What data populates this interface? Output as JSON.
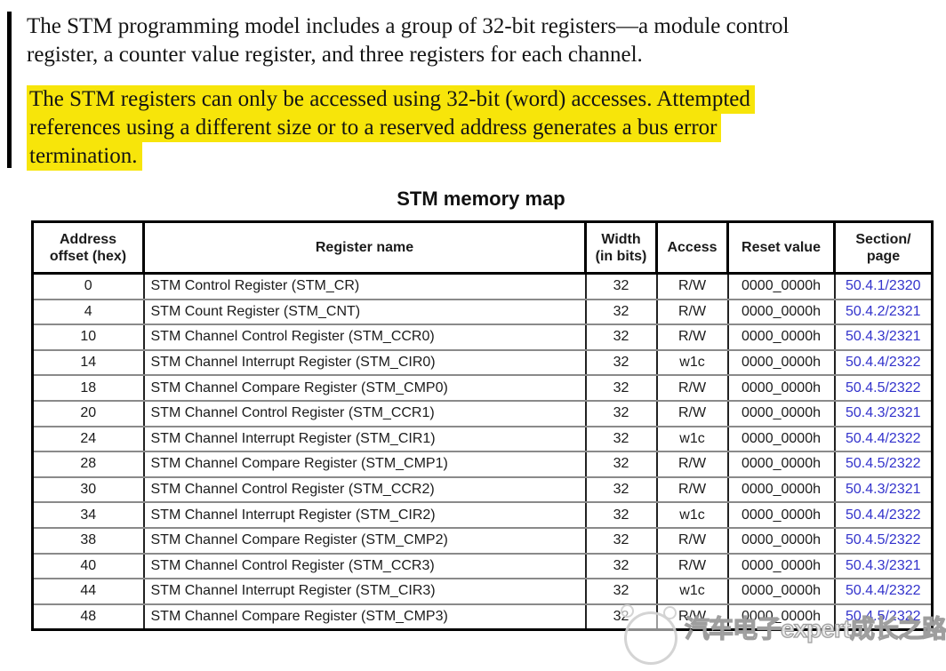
{
  "paragraph1": {
    "lines": [
      "The STM programming model includes a group of 32-bit registers—a module control",
      "register, a counter value register, and three registers for each channel."
    ]
  },
  "highlight_note": {
    "lines": [
      "The STM registers can only be accessed using 32-bit (word) accesses. Attempted",
      "references using a different size or to a reserved address generates a bus error",
      "termination."
    ]
  },
  "table_title": "STM memory map",
  "table": {
    "headers": [
      {
        "line1": "Address",
        "line2": "offset (hex)"
      },
      {
        "line1": "Register name",
        "line2": ""
      },
      {
        "line1": "Width",
        "line2": "(in bits)"
      },
      {
        "line1": "Access",
        "line2": ""
      },
      {
        "line1": "Reset value",
        "line2": ""
      },
      {
        "line1": "Section/",
        "line2": "page"
      }
    ],
    "rows": [
      {
        "offset": "0",
        "name": "STM Control Register (STM_CR)",
        "width": "32",
        "access": "R/W",
        "reset": "0000_0000h",
        "section": "50.4.1/2320"
      },
      {
        "offset": "4",
        "name": "STM Count Register (STM_CNT)",
        "width": "32",
        "access": "R/W",
        "reset": "0000_0000h",
        "section": "50.4.2/2321"
      },
      {
        "offset": "10",
        "name": "STM Channel Control Register (STM_CCR0)",
        "width": "32",
        "access": "R/W",
        "reset": "0000_0000h",
        "section": "50.4.3/2321"
      },
      {
        "offset": "14",
        "name": "STM Channel Interrupt Register (STM_CIR0)",
        "width": "32",
        "access": "w1c",
        "reset": "0000_0000h",
        "section": "50.4.4/2322"
      },
      {
        "offset": "18",
        "name": "STM Channel Compare Register (STM_CMP0)",
        "width": "32",
        "access": "R/W",
        "reset": "0000_0000h",
        "section": "50.4.5/2322"
      },
      {
        "offset": "20",
        "name": "STM Channel Control Register (STM_CCR1)",
        "width": "32",
        "access": "R/W",
        "reset": "0000_0000h",
        "section": "50.4.3/2321"
      },
      {
        "offset": "24",
        "name": "STM Channel Interrupt Register (STM_CIR1)",
        "width": "32",
        "access": "w1c",
        "reset": "0000_0000h",
        "section": "50.4.4/2322"
      },
      {
        "offset": "28",
        "name": "STM Channel Compare Register (STM_CMP1)",
        "width": "32",
        "access": "R/W",
        "reset": "0000_0000h",
        "section": "50.4.5/2322"
      },
      {
        "offset": "30",
        "name": "STM Channel Control Register (STM_CCR2)",
        "width": "32",
        "access": "R/W",
        "reset": "0000_0000h",
        "section": "50.4.3/2321"
      },
      {
        "offset": "34",
        "name": "STM Channel Interrupt Register (STM_CIR2)",
        "width": "32",
        "access": "w1c",
        "reset": "0000_0000h",
        "section": "50.4.4/2322"
      },
      {
        "offset": "38",
        "name": "STM Channel Compare Register (STM_CMP2)",
        "width": "32",
        "access": "R/W",
        "reset": "0000_0000h",
        "section": "50.4.5/2322"
      },
      {
        "offset": "40",
        "name": "STM Channel Control Register (STM_CCR3)",
        "width": "32",
        "access": "R/W",
        "reset": "0000_0000h",
        "section": "50.4.3/2321"
      },
      {
        "offset": "44",
        "name": "STM Channel Interrupt Register (STM_CIR3)",
        "width": "32",
        "access": "w1c",
        "reset": "0000_0000h",
        "section": "50.4.4/2322"
      },
      {
        "offset": "48",
        "name": "STM Channel Compare Register (STM_CMP3)",
        "width": "32",
        "access": "R/W",
        "reset": "0000_0000h",
        "section": "50.4.5/2322"
      }
    ]
  },
  "watermark": {
    "text": "汽车电子expert成长之路"
  },
  "colors": {
    "highlight_yellow": "#f7e50a",
    "link_blue": "#3333cc",
    "row_divider_gray": "#8a8a8a",
    "border_black": "#000000"
  }
}
